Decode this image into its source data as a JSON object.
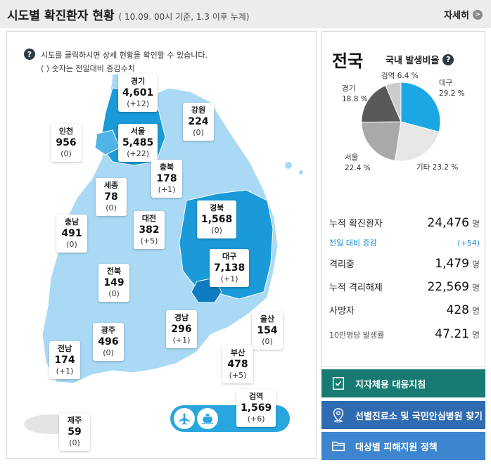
{
  "header": {
    "title": "시도별 확진환자 현황",
    "subtitle": "( 10.09. 00시 기준, 1.3 이후 누계)",
    "more_label": "자세히"
  },
  "map": {
    "help_icon": "question-icon",
    "help_line1": "시도를 클릭하시면 상세 현황을 확인할 수 있습니다.",
    "help_line2": "( ) 숫자는 전일대비 증감수치",
    "regions": [
      {
        "name": "경기",
        "count": "4,601",
        "diff": "(+12)"
      },
      {
        "name": "강원",
        "count": "224",
        "diff": "(0)"
      },
      {
        "name": "인천",
        "count": "956",
        "diff": "(0)"
      },
      {
        "name": "서울",
        "count": "5,485",
        "diff": "(+22)"
      },
      {
        "name": "충북",
        "count": "178",
        "diff": "(+1)"
      },
      {
        "name": "세종",
        "count": "78",
        "diff": "(0)"
      },
      {
        "name": "경북",
        "count": "1,568",
        "diff": "(0)"
      },
      {
        "name": "충남",
        "count": "491",
        "diff": "(0)"
      },
      {
        "name": "대전",
        "count": "382",
        "diff": "(+5)"
      },
      {
        "name": "대구",
        "count": "7,138",
        "diff": "(+1)"
      },
      {
        "name": "전북",
        "count": "149",
        "diff": "(0)"
      },
      {
        "name": "경남",
        "count": "296",
        "diff": "(+1)"
      },
      {
        "name": "울산",
        "count": "154",
        "diff": "(0)"
      },
      {
        "name": "광주",
        "count": "496",
        "diff": "(0)"
      },
      {
        "name": "부산",
        "count": "478",
        "diff": "(+5)"
      },
      {
        "name": "전남",
        "count": "174",
        "diff": "(+1)"
      },
      {
        "name": "제주",
        "count": "59",
        "diff": "(0)"
      },
      {
        "name": "검역",
        "count": "1,569",
        "diff": "(+6)"
      }
    ],
    "transport_icons": [
      "airplane-icon",
      "ship-icon"
    ]
  },
  "national": {
    "title": "전국",
    "ratio_label": "국내 발생비율",
    "ratio_help_icon": "question-icon",
    "pie": [
      {
        "name": "대구",
        "percent": "29.2 %",
        "value": 29.2,
        "color": "#1aa7e3"
      },
      {
        "name": "기타",
        "percent": "23.2 %",
        "value": 23.2,
        "color": "#e6e6e6"
      },
      {
        "name": "서울",
        "percent": "22.4 %",
        "value": 22.4,
        "color": "#a9a9a9"
      },
      {
        "name": "경기",
        "percent": "18.8 %",
        "value": 18.8,
        "color": "#595959"
      },
      {
        "name": "검역",
        "percent": "6.4 %",
        "value": 6.4,
        "color": "#cccccc"
      }
    ],
    "stats": {
      "total_label": "누적 확진환자",
      "total_value": "24,476",
      "total_unit": "명",
      "daily_label": "전일 대비 증감",
      "daily_value": "(+54)",
      "isolated_label": "격리중",
      "isolated_value": "1,479",
      "isolated_unit": "명",
      "released_label": "누적 격리해제",
      "released_value": "22,569",
      "released_unit": "명",
      "deaths_label": "사망자",
      "deaths_value": "428",
      "deaths_unit": "명",
      "rate_label": "10만명당 발생률",
      "rate_value": "47.21",
      "rate_unit": "명"
    }
  },
  "actions": [
    {
      "label": "지자체용 대응지침",
      "icon": "document-check-icon"
    },
    {
      "label": "선별진료소 및 국민안심병원 찾기",
      "icon": "map-pin-icon"
    },
    {
      "label": "대상별 피해지원 정책",
      "icon": "folder-icon"
    }
  ],
  "colors": {
    "map_light": "#a9d9f5",
    "map_medium": "#4fb4e6",
    "map_dark": "#1a9ad8",
    "map_darkest": "#0f7cc1",
    "btn_teal": "#177b74",
    "btn_blue": "#2f6bb1",
    "btn_lightblue": "#3d86cf"
  }
}
